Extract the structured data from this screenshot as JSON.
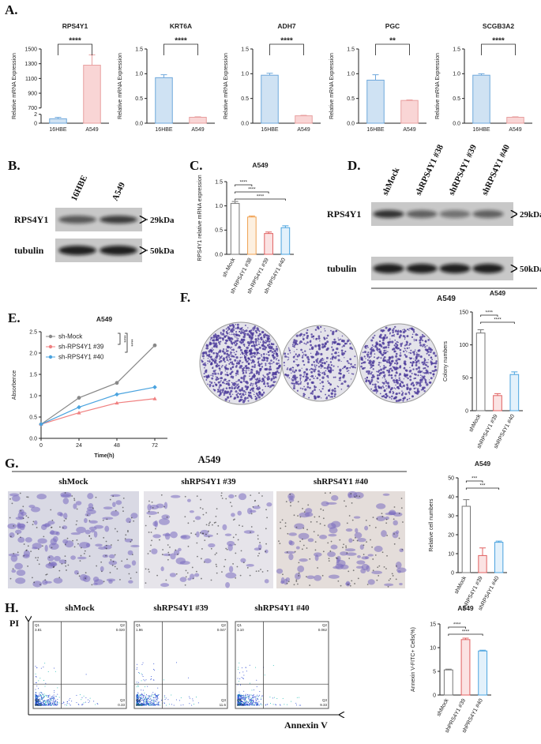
{
  "panel_labels": [
    "A.",
    "B.",
    "C.",
    "D.",
    "E.",
    "F.",
    "G.",
    "H."
  ],
  "chart_data": [
    {
      "type": "bar",
      "title": "RPS4Y1",
      "y_label": "Relative mRNA Expression",
      "categories": [
        "16HBE",
        "A549"
      ],
      "values": [
        1,
        1280
      ],
      "errors": [
        0.3,
        140
      ],
      "colors": [
        "#cfe2f3",
        "#f9d5d5"
      ],
      "edge_colors": [
        "#6fa8dc",
        "#e8a0a0"
      ],
      "ylim": [
        0,
        1500
      ],
      "axis_break": [
        2,
        700
      ],
      "yticks": [
        0,
        2,
        700,
        900,
        1100,
        1300,
        1500
      ],
      "comparisons": [
        {
          "from": "16HBE",
          "to": "A549",
          "label": "****"
        }
      ]
    },
    {
      "type": "bar",
      "title": "KRT6A",
      "y_label": "Relative mRNA Expression",
      "categories": [
        "16HBE",
        "A549"
      ],
      "values": [
        0.92,
        0.12
      ],
      "errors": [
        0.06,
        0.01
      ],
      "colors": [
        "#cfe2f3",
        "#f9d5d5"
      ],
      "edge_colors": [
        "#6fa8dc",
        "#e8a0a0"
      ],
      "ylim": [
        0,
        1.5
      ],
      "yticks": [
        {
          "value": 0,
          "label": "0.0"
        },
        {
          "value": 0.5,
          "label": "0.5"
        },
        {
          "value": 1,
          "label": "1.0"
        },
        {
          "value": 1.5,
          "label": "1.5"
        }
      ],
      "comparisons": [
        {
          "from": "16HBE",
          "to": "A549",
          "label": "****"
        }
      ]
    },
    {
      "type": "bar",
      "title": "ADH7",
      "y_label": "Relative mRNA Expression",
      "categories": [
        "16HBE",
        "A549"
      ],
      "values": [
        0.97,
        0.15
      ],
      "errors": [
        0.04,
        0.01
      ],
      "colors": [
        "#cfe2f3",
        "#f9d5d5"
      ],
      "edge_colors": [
        "#6fa8dc",
        "#e8a0a0"
      ],
      "ylim": [
        0,
        1.5
      ],
      "yticks": [
        {
          "value": 0,
          "label": "0.0"
        },
        {
          "value": 0.5,
          "label": "0.5"
        },
        {
          "value": 1,
          "label": "1.0"
        },
        {
          "value": 1.5,
          "label": "1.5"
        }
      ],
      "comparisons": [
        {
          "from": "16HBE",
          "to": "A549",
          "label": "****"
        }
      ]
    },
    {
      "type": "bar",
      "title": "PGC",
      "y_label": "Relative mRNA Expression",
      "categories": [
        "16HBE",
        "A549"
      ],
      "values": [
        0.87,
        0.46
      ],
      "errors": [
        0.11,
        0.01
      ],
      "colors": [
        "#cfe2f3",
        "#f9d5d5"
      ],
      "edge_colors": [
        "#6fa8dc",
        "#e8a0a0"
      ],
      "ylim": [
        0,
        1.5
      ],
      "yticks": [
        {
          "value": 0,
          "label": "0.0"
        },
        {
          "value": 0.5,
          "label": "0.5"
        },
        {
          "value": 1,
          "label": "1.0"
        },
        {
          "value": 1.5,
          "label": "1.5"
        }
      ],
      "comparisons": [
        {
          "from": "16HBE",
          "to": "A549",
          "label": "**"
        }
      ]
    },
    {
      "type": "bar",
      "title": "SCGB3A2",
      "y_label": "Relative mRNA Expression",
      "categories": [
        "16HBE",
        "A549"
      ],
      "values": [
        0.97,
        0.12
      ],
      "errors": [
        0.03,
        0.01
      ],
      "colors": [
        "#cfe2f3",
        "#f9d5d5"
      ],
      "edge_colors": [
        "#6fa8dc",
        "#e8a0a0"
      ],
      "ylim": [
        0,
        1.5
      ],
      "yticks": [
        {
          "value": 0,
          "label": "0.0"
        },
        {
          "value": 0.5,
          "label": "0.5"
        },
        {
          "value": 1,
          "label": "1.0"
        },
        {
          "value": 1.5,
          "label": "1.5"
        }
      ],
      "comparisons": [
        {
          "from": "16HBE",
          "to": "A549",
          "label": "****"
        }
      ]
    },
    {
      "type": "bar",
      "title": "A549",
      "y_label": "RPS4Y1 relative mRNA expression",
      "categories": [
        "sh-Mock",
        "sh-RPS4Y1 #38",
        "sh-RPS4Y1 #39",
        "sh-RPS4Y1 #40"
      ],
      "values": [
        1.05,
        0.77,
        0.43,
        0.55
      ],
      "errors": [
        0.04,
        0.02,
        0.03,
        0.04
      ],
      "colors": [
        "#ffffff",
        "#fdf0e0",
        "#fbe3e3",
        "#e3f1fb"
      ],
      "edge_colors": [
        "#777777",
        "#f0a050",
        "#e06060",
        "#4aa3df"
      ],
      "ylim": [
        0,
        1.5
      ],
      "yticks": [
        {
          "value": 0,
          "label": "0.0"
        },
        {
          "value": 0.5,
          "label": "0.5"
        },
        {
          "value": 1,
          "label": "1.0"
        },
        {
          "value": 1.5,
          "label": "1.5"
        }
      ],
      "comparisons": [
        {
          "from": "sh-Mock",
          "to": "sh-RPS4Y1 #38",
          "label": "****"
        },
        {
          "from": "sh-Mock",
          "to": "sh-RPS4Y1 #39",
          "label": "****"
        },
        {
          "from": "sh-Mock",
          "to": "sh-RPS4Y1 #40",
          "label": "****"
        }
      ]
    },
    {
      "type": "line",
      "title": "A549",
      "x_label": "Time(h)",
      "y_label": "Absorbence",
      "x": [
        0,
        24,
        48,
        72
      ],
      "series": [
        {
          "name": "sh-Mock",
          "color": "#888888",
          "values": [
            0.33,
            0.95,
            1.3,
            2.18
          ]
        },
        {
          "name": "sh-RPS4Y1 #39",
          "color": "#f08080",
          "values": [
            0.33,
            0.6,
            0.83,
            0.93
          ]
        },
        {
          "name": "sh-RPS4Y1 #40",
          "color": "#4aa3df",
          "values": [
            0.33,
            0.73,
            1.03,
            1.2
          ]
        }
      ],
      "xlim": [
        0,
        80
      ],
      "xticks": [
        0,
        24,
        48,
        72
      ],
      "ylim": [
        0,
        2.5
      ],
      "yticks": [
        {
          "value": 0,
          "label": "0.0"
        },
        {
          "value": 0.5,
          "label": "0.5"
        },
        {
          "value": 1,
          "label": "1.0"
        },
        {
          "value": 1.5,
          "label": "1.5"
        },
        {
          "value": 2,
          "label": "2.0"
        },
        {
          "value": 2.5,
          "label": "2.5"
        }
      ],
      "comparisons": [
        {
          "from": "sh-Mock",
          "to": "sh-RPS4Y1 #39",
          "label": "****"
        },
        {
          "from": "sh-Mock",
          "to": "sh-RPS4Y1 #40",
          "label": "****"
        }
      ]
    },
    {
      "type": "bar",
      "title": "A549",
      "y_label": "Colony numbers",
      "categories": [
        "shMock",
        "shRPS4Y1 #39",
        "shRPS4Y1 #40"
      ],
      "values": [
        118,
        23,
        55
      ],
      "errors": [
        5,
        3,
        4
      ],
      "colors": [
        "#ffffff",
        "#fbe3e3",
        "#e3f1fb"
      ],
      "edge_colors": [
        "#777777",
        "#e06060",
        "#4aa3df"
      ],
      "ylim": [
        0,
        150
      ],
      "yticks": [
        0,
        50,
        100,
        150
      ],
      "comparisons": [
        {
          "from": "shMock",
          "to": "shRPS4Y1 #39",
          "label": "****"
        },
        {
          "from": "shMock",
          "to": "shRPS4Y1 #40",
          "label": "****"
        }
      ]
    },
    {
      "type": "bar",
      "title": "A549",
      "y_label": "Relative cell numbers",
      "categories": [
        "shMock",
        "shRPS4Y1 #39",
        "shRPS4Y1 #40"
      ],
      "values": [
        35,
        9,
        16
      ],
      "errors": [
        3.5,
        4,
        0.6
      ],
      "colors": [
        "#ffffff",
        "#fbe3e3",
        "#e3f1fb"
      ],
      "edge_colors": [
        "#777777",
        "#e06060",
        "#4aa3df"
      ],
      "ylim": [
        0,
        50
      ],
      "yticks": [
        0,
        10,
        20,
        30,
        40,
        50
      ],
      "comparisons": [
        {
          "from": "shMock",
          "to": "shRPS4Y1 #39",
          "label": "***"
        },
        {
          "from": "shMock",
          "to": "shRPS4Y1 #40",
          "label": "***"
        }
      ]
    },
    {
      "type": "bar",
      "title": "A549",
      "y_label": "Annexin V-FITC+ Cells(%)",
      "categories": [
        "shMock",
        "shPRS4Y1 #39",
        "shPRS4Y1 #40"
      ],
      "values": [
        5.3,
        11.7,
        9.3
      ],
      "errors": [
        0.15,
        0.3,
        0.15
      ],
      "colors": [
        "#ffffff",
        "#fbe3e3",
        "#e3f1fb"
      ],
      "edge_colors": [
        "#777777",
        "#e06060",
        "#4aa3df"
      ],
      "ylim": [
        0,
        15
      ],
      "yticks": [
        0,
        5,
        10,
        15
      ],
      "comparisons": [
        {
          "from": "shMock",
          "to": "shPRS4Y1 #39",
          "label": "****"
        },
        {
          "from": "shMock",
          "to": "shPRS4Y1 #40",
          "label": "****"
        }
      ]
    }
  ],
  "blot_b": {
    "lanes": [
      "16HBE",
      "A549"
    ],
    "proteins": [
      "RPS4Y1",
      "tubulin"
    ],
    "sizes": [
      "29kDa",
      "50kDa"
    ]
  },
  "blot_d": {
    "lanes": [
      "shMock",
      "shRPS4Y1 #38",
      "shRPS4Y1 #39",
      "shRPS4Y1 #40"
    ],
    "proteins": [
      "RPS4Y1",
      "tubulin"
    ],
    "sizes": [
      "29kDa",
      "50kDa"
    ],
    "cell_line": "A549"
  },
  "migration": {
    "title": "A549",
    "conditions": [
      "shMock",
      "shRPS4Y1 #39",
      "shRPS4Y1 #40"
    ]
  },
  "flow": {
    "conditions": [
      "shMock",
      "shRPS4Y1 #39",
      "shRPS4Y1 #40"
    ],
    "y_axis": "PI",
    "x_axis": "Annexin V",
    "quadrant_names": [
      "Q1",
      "Q2",
      "Q3",
      "Q4"
    ],
    "quadrants": [
      [
        "3.81",
        "0.020",
        "0.33",
        "96.2"
      ],
      [
        "1.96",
        "0.047",
        "11.6",
        "86.2"
      ],
      [
        "3.10",
        "0.062",
        "9.33",
        "87.5"
      ]
    ]
  }
}
